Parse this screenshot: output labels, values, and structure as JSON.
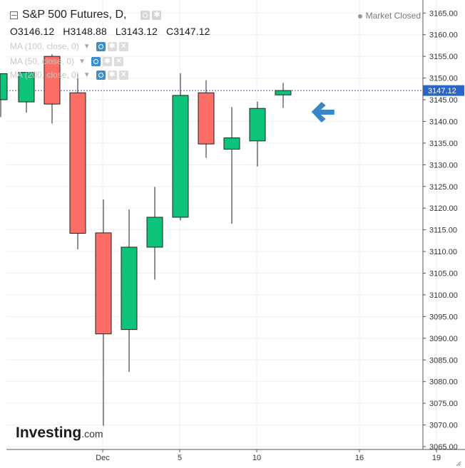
{
  "header": {
    "symbol_title": "S&P 500 Futures, D,",
    "open": "O3146.12",
    "high": "H3148.88",
    "low": "L3143.12",
    "close": "C3147.12",
    "market_status": "Market Closed",
    "indicators": [
      {
        "label": "MA (100, close, 0)"
      },
      {
        "label": "MA (50, close, 0)"
      },
      {
        "label": "MA (200, close, 0)"
      }
    ]
  },
  "brand": {
    "logo_text": "Investing",
    "logo_suffix": ".com"
  },
  "colors": {
    "up": "#0cc37a",
    "down": "#fa6e66",
    "arrow": "#3a86c8",
    "price_line": "#3b5fb5",
    "price_tag": "#2b66c6"
  },
  "chart_data": {
    "type": "candlestick",
    "y_axis": {
      "min": 3065,
      "max": 3168,
      "ticks": [
        "3165.00",
        "3160.00",
        "3155.00",
        "3150.00",
        "3145.00",
        "3140.00",
        "3135.00",
        "3130.00",
        "3125.00",
        "3120.00",
        "3115.00",
        "3110.00",
        "3105.00",
        "3100.00",
        "3095.00",
        "3090.00",
        "3085.00",
        "3080.00",
        "3075.00",
        "3070.00",
        "3065.00"
      ],
      "last_price_label": "3147.12",
      "last_price": 3147.12
    },
    "x_axis": {
      "ticks": [
        {
          "label": "Dec",
          "index": 4
        },
        {
          "label": "5",
          "index": 7
        },
        {
          "label": "10",
          "index": 10
        },
        {
          "label": "16",
          "index": 14
        },
        {
          "label": "19",
          "index": 17
        }
      ]
    },
    "candles": [
      {
        "index": 0,
        "open": 3145.0,
        "high": 3151.0,
        "low": 3141.0,
        "close": 3151.0
      },
      {
        "index": 1,
        "open": 3144.5,
        "high": 3151.0,
        "low": 3142.0,
        "close": 3151.3
      },
      {
        "index": 2,
        "open": 3155.0,
        "high": 3155.5,
        "low": 3139.5,
        "close": 3144.0
      },
      {
        "index": 3,
        "open": 3146.6,
        "high": 3151.0,
        "low": 3110.5,
        "close": 3114.2
      },
      {
        "index": 4,
        "open": 3114.3,
        "high": 3122.0,
        "low": 3069.8,
        "close": 3091.0
      },
      {
        "index": 5,
        "open": 3092.0,
        "high": 3119.7,
        "low": 3082.2,
        "close": 3111.0
      },
      {
        "index": 6,
        "open": 3111.0,
        "high": 3124.9,
        "low": 3103.5,
        "close": 3117.9
      },
      {
        "index": 7,
        "open": 3117.9,
        "high": 3151.1,
        "low": 3117.2,
        "close": 3146.0
      },
      {
        "index": 8,
        "open": 3146.6,
        "high": 3149.5,
        "low": 3131.6,
        "close": 3134.8
      },
      {
        "index": 9,
        "open": 3133.6,
        "high": 3143.3,
        "low": 3116.4,
        "close": 3136.2
      },
      {
        "index": 10,
        "open": 3135.5,
        "high": 3144.6,
        "low": 3129.6,
        "close": 3143.0
      },
      {
        "index": 11,
        "open": 3146.12,
        "high": 3148.88,
        "low": 3143.12,
        "close": 3147.12
      }
    ],
    "annotation": {
      "type": "arrow",
      "direction": "left",
      "at_index": 12.3,
      "price": 3142.2
    }
  }
}
